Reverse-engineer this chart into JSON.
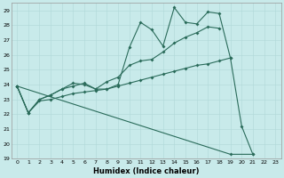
{
  "title": "",
  "xlabel": "Humidex (Indice chaleur)",
  "bg_color": "#c8eaea",
  "grid_color": "#afd8d8",
  "line_color": "#2a6b5a",
  "xlim": [
    -0.5,
    23.5
  ],
  "ylim": [
    19,
    29.5
  ],
  "xticks": [
    0,
    1,
    2,
    3,
    4,
    5,
    6,
    7,
    8,
    9,
    10,
    11,
    12,
    13,
    14,
    15,
    16,
    17,
    18,
    19,
    20,
    21,
    22,
    23
  ],
  "yticks": [
    19,
    20,
    21,
    22,
    23,
    24,
    25,
    26,
    27,
    28,
    29
  ],
  "series1_x": [
    0,
    1,
    2,
    3,
    4,
    5,
    6,
    7,
    8,
    9,
    10,
    11,
    12,
    13,
    14,
    15,
    16,
    17,
    18,
    19,
    20,
    21
  ],
  "series1_y": [
    23.9,
    22.1,
    23.0,
    23.3,
    23.7,
    23.9,
    24.1,
    23.7,
    23.7,
    24.0,
    26.5,
    28.2,
    27.7,
    26.6,
    29.2,
    28.2,
    28.1,
    28.9,
    28.8,
    25.8,
    21.2,
    19.3
  ],
  "series2_x": [
    0,
    1,
    2,
    3,
    4,
    5,
    6,
    7,
    8,
    9,
    10,
    11,
    12,
    13,
    14,
    15,
    16,
    17,
    18
  ],
  "series2_y": [
    23.9,
    22.1,
    23.0,
    23.3,
    23.7,
    24.1,
    24.0,
    23.7,
    24.2,
    24.5,
    25.3,
    25.6,
    25.7,
    26.2,
    26.8,
    27.2,
    27.5,
    27.9,
    27.8
  ],
  "series3_x": [
    0,
    1,
    2,
    3,
    4,
    5,
    6,
    7,
    8,
    9,
    10,
    11,
    12,
    13,
    14,
    15,
    16,
    17,
    18,
    19
  ],
  "series3_y": [
    23.9,
    22.1,
    22.9,
    23.0,
    23.2,
    23.4,
    23.5,
    23.6,
    23.7,
    23.9,
    24.1,
    24.3,
    24.5,
    24.7,
    24.9,
    25.1,
    25.3,
    25.4,
    25.6,
    25.8
  ],
  "series4_x": [
    0,
    19,
    21
  ],
  "series4_y": [
    23.9,
    19.3,
    19.3
  ]
}
